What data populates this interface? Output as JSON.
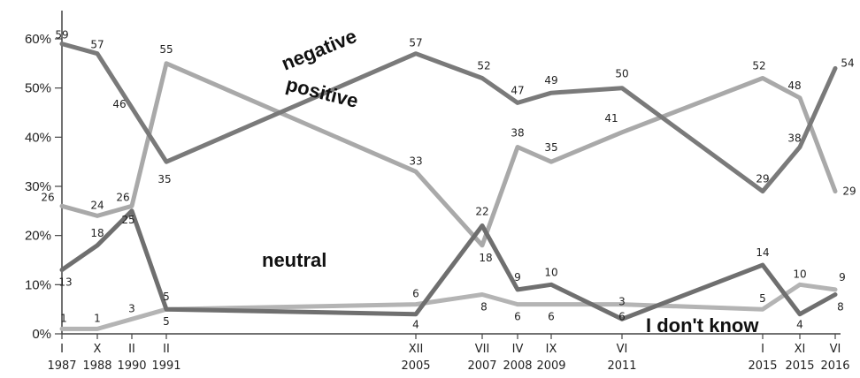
{
  "chart_data": {
    "type": "line",
    "categories": [
      [
        "I",
        "1987"
      ],
      [
        "X",
        "1988"
      ],
      [
        "II",
        "1990"
      ],
      [
        "II",
        "1991"
      ],
      [
        "XII",
        "2005"
      ],
      [
        "VII",
        "2007"
      ],
      [
        "IV",
        "2008"
      ],
      [
        "IX",
        "2009"
      ],
      [
        "VI",
        "2011"
      ],
      [
        "I",
        "2015"
      ],
      [
        "XI",
        "2015"
      ],
      [
        "VI",
        "2016"
      ]
    ],
    "ylim": [
      0,
      60
    ],
    "yticks": [
      "0%",
      "10%",
      "20%",
      "30%",
      "40%",
      "50%",
      "60%"
    ],
    "series": [
      {
        "name": "negative",
        "color": "#7a7a7a",
        "values": [
          59,
          57,
          46,
          35,
          57,
          52,
          47,
          49,
          50,
          29,
          38,
          54
        ]
      },
      {
        "name": "positive",
        "color": "#a9a9a9",
        "values": [
          26,
          24,
          26,
          55,
          33,
          18,
          38,
          35,
          41,
          52,
          48,
          29
        ]
      },
      {
        "name": "neutral",
        "color": "#6f6f6f",
        "values": [
          13,
          18,
          25,
          5,
          4,
          22,
          9,
          10,
          3,
          14,
          4,
          8
        ]
      },
      {
        "name": "I don't know",
        "color": "#b4b4b4",
        "values": [
          1,
          1,
          3,
          5,
          6,
          8,
          6,
          6,
          6,
          5,
          10,
          9
        ]
      }
    ]
  }
}
